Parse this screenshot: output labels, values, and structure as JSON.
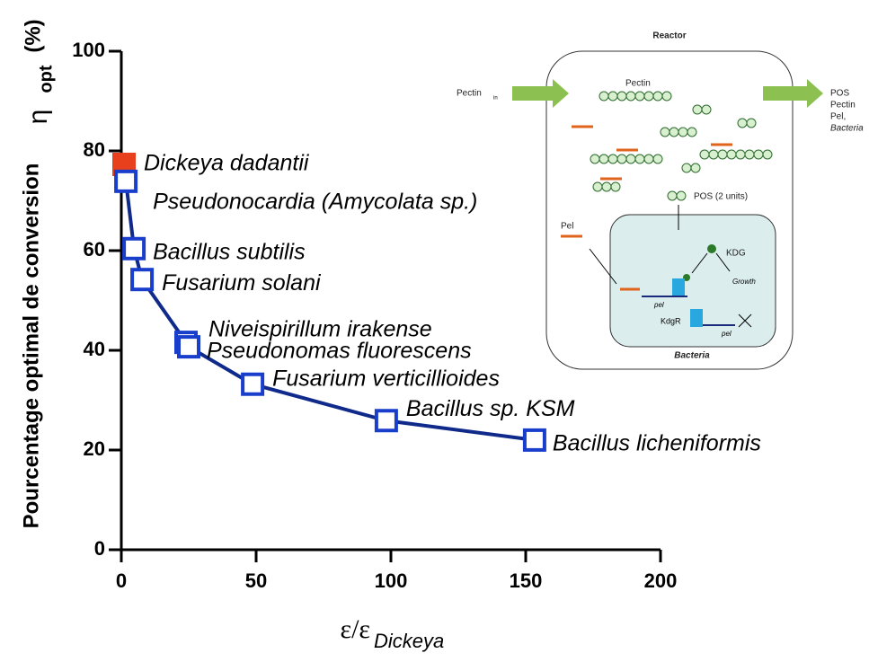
{
  "chart_data": {
    "type": "line",
    "y_label": "Pourcentage optimal de conversion",
    "y_label_symbol": "η",
    "y_label_sub": "opt",
    "y_label_unit": "(%)",
    "x_label": "ε/ε",
    "x_label_sub": "Dickeya",
    "xlim": [
      0,
      200
    ],
    "xticks": [
      0,
      50,
      100,
      150,
      200
    ],
    "ylim": [
      0,
      100
    ],
    "yticks": [
      0,
      20,
      40,
      60,
      80,
      100
    ],
    "series": [
      {
        "color": "#e8401c",
        "filled": true,
        "line": false,
        "x": [
          1
        ],
        "values": [
          77.3
        ],
        "labels": [
          "Dickeya dadantii"
        ]
      },
      {
        "color": "#1a3ecc",
        "line_color": "#102a8c",
        "filled": false,
        "line": true,
        "x": [
          1.7,
          4.7,
          7.7,
          24,
          25,
          48.7,
          98.3,
          153.3
        ],
        "values": [
          73.9,
          60.4,
          54.2,
          41.6,
          40.7,
          33.2,
          25.9,
          22
        ],
        "labels": [
          "Pseudonocardia (Amycolata sp.)",
          "Bacillus subtilis",
          "Fusarium solani",
          "Niveispirillum irakense",
          "Pseudonomas fluorescens",
          "Fusarium verticillioides",
          "Bacillus sp. KSM",
          "Bacillus licheniformis"
        ]
      }
    ]
  },
  "inset": {
    "title": "Reactor",
    "inlet": "Pectin",
    "inlet_sub": "in",
    "pectin": "Pectin",
    "outlet": [
      "POS",
      "Pectin",
      "Pel,",
      "Bacteria"
    ],
    "pos": "POS (2 units)",
    "pel": "Pel",
    "kdg": "KDG",
    "growth": "Growth",
    "gene1": "pel",
    "kdgr": "KdgR",
    "gene2": "pel",
    "cell": "Bacteria"
  }
}
